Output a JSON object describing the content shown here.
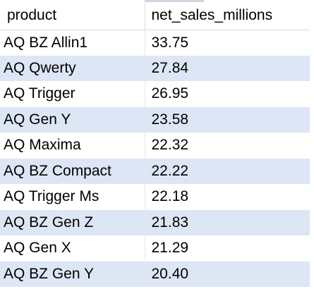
{
  "results_grid": {
    "columns": [
      "product",
      "net_sales_millions"
    ],
    "rows": [
      [
        "AQ BZ Allin1",
        "33.75"
      ],
      [
        "AQ Qwerty",
        "27.84"
      ],
      [
        "AQ Trigger",
        "26.95"
      ],
      [
        "AQ Gen Y",
        "23.58"
      ],
      [
        "AQ Maxima",
        "22.32"
      ],
      [
        "AQ BZ Compact",
        "22.22"
      ],
      [
        "AQ Trigger Ms",
        "22.18"
      ],
      [
        "AQ BZ Gen Z",
        "21.83"
      ],
      [
        "AQ Gen X",
        "21.29"
      ],
      [
        "AQ BZ Gen Y",
        "20.40"
      ]
    ],
    "colors": {
      "stripe": "#dde6f4",
      "background": "#ffffff",
      "gridline": "#d9dde3"
    }
  }
}
